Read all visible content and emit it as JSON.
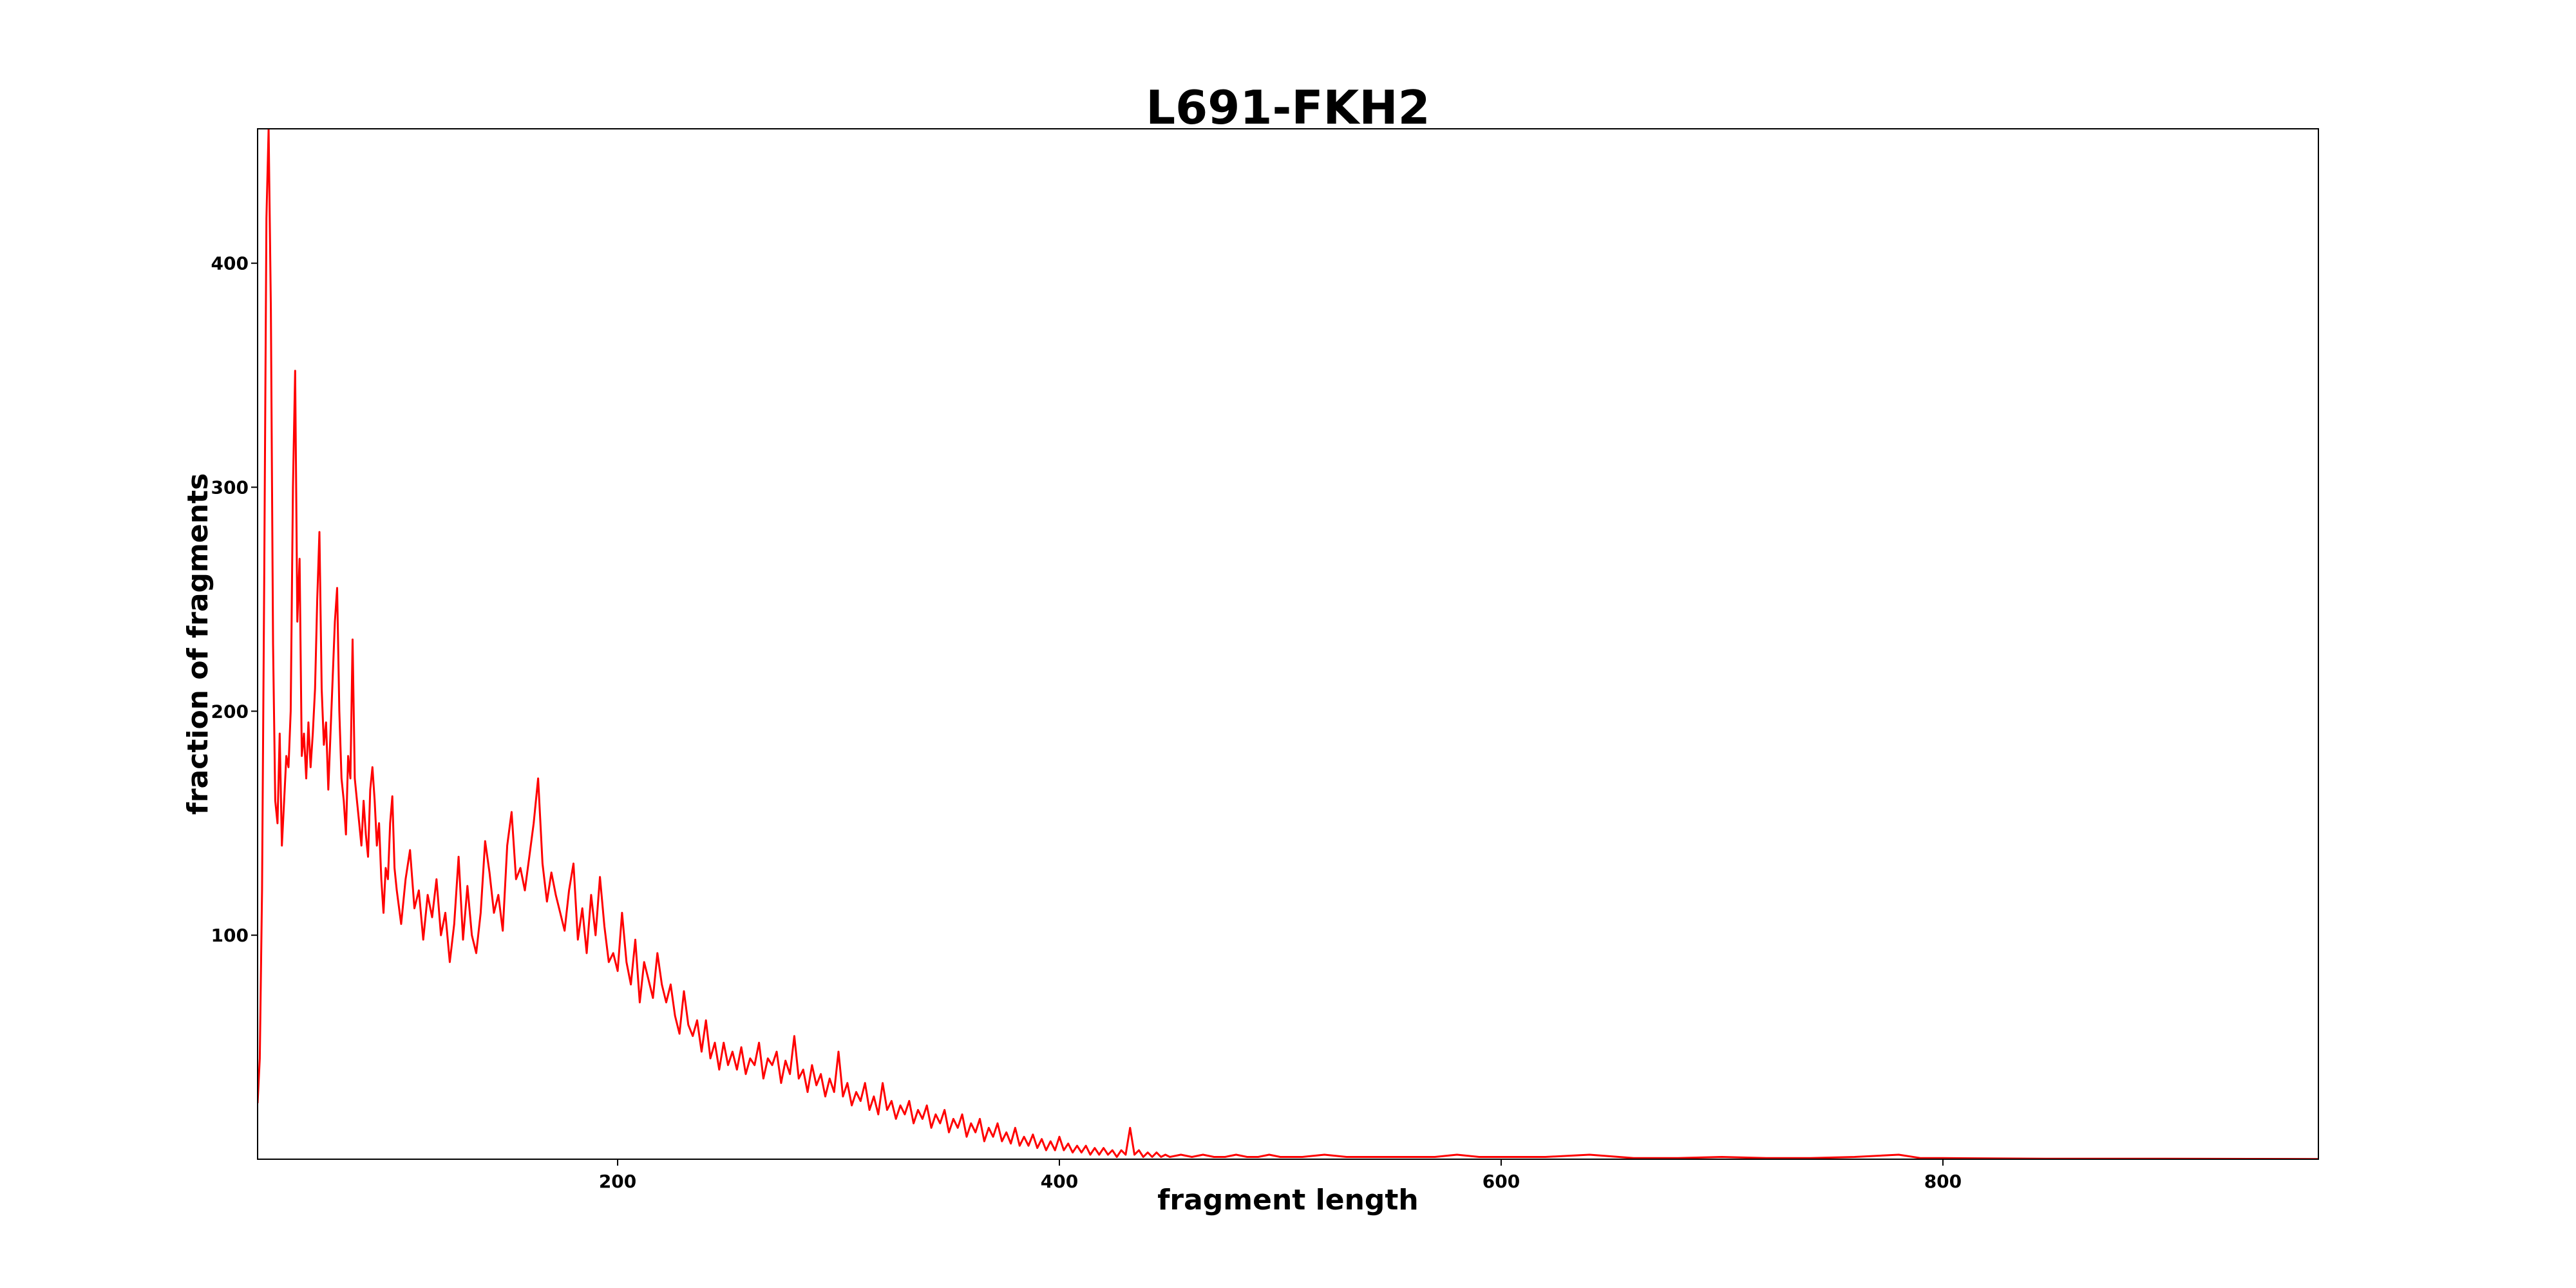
{
  "chart_data": {
    "type": "line",
    "title": "L691-FKH2",
    "xlabel": "fragment length",
    "ylabel": "fraction of fragments",
    "xlim": [
      37,
      970
    ],
    "ylim": [
      0,
      460
    ],
    "xticks": [
      200,
      400,
      600,
      800
    ],
    "yticks": [
      100,
      200,
      300,
      400
    ],
    "grid": false,
    "series": [
      {
        "color": "#ff0000",
        "points": [
          [
            37,
            25
          ],
          [
            38,
            45
          ],
          [
            39,
            120
          ],
          [
            40,
            260
          ],
          [
            41,
            420
          ],
          [
            42,
            460
          ],
          [
            43,
            380
          ],
          [
            44,
            230
          ],
          [
            45,
            160
          ],
          [
            46,
            150
          ],
          [
            47,
            190
          ],
          [
            48,
            140
          ],
          [
            49,
            160
          ],
          [
            50,
            180
          ],
          [
            51,
            175
          ],
          [
            52,
            200
          ],
          [
            53,
            300
          ],
          [
            54,
            352
          ],
          [
            55,
            240
          ],
          [
            56,
            268
          ],
          [
            57,
            180
          ],
          [
            58,
            190
          ],
          [
            59,
            170
          ],
          [
            60,
            195
          ],
          [
            61,
            175
          ],
          [
            62,
            190
          ],
          [
            63,
            210
          ],
          [
            64,
            250
          ],
          [
            65,
            280
          ],
          [
            66,
            210
          ],
          [
            67,
            185
          ],
          [
            68,
            195
          ],
          [
            69,
            165
          ],
          [
            70,
            190
          ],
          [
            71,
            215
          ],
          [
            72,
            240
          ],
          [
            73,
            255
          ],
          [
            74,
            200
          ],
          [
            75,
            170
          ],
          [
            76,
            160
          ],
          [
            77,
            145
          ],
          [
            78,
            180
          ],
          [
            79,
            170
          ],
          [
            80,
            232
          ],
          [
            81,
            170
          ],
          [
            82,
            160
          ],
          [
            83,
            150
          ],
          [
            84,
            140
          ],
          [
            85,
            160
          ],
          [
            86,
            145
          ],
          [
            87,
            135
          ],
          [
            88,
            165
          ],
          [
            89,
            175
          ],
          [
            90,
            160
          ],
          [
            91,
            140
          ],
          [
            92,
            150
          ],
          [
            93,
            125
          ],
          [
            94,
            110
          ],
          [
            95,
            130
          ],
          [
            96,
            125
          ],
          [
            97,
            150
          ],
          [
            98,
            162
          ],
          [
            99,
            130
          ],
          [
            100,
            120
          ],
          [
            102,
            105
          ],
          [
            104,
            125
          ],
          [
            106,
            138
          ],
          [
            108,
            112
          ],
          [
            110,
            120
          ],
          [
            112,
            98
          ],
          [
            114,
            118
          ],
          [
            116,
            108
          ],
          [
            118,
            125
          ],
          [
            120,
            100
          ],
          [
            122,
            110
          ],
          [
            124,
            88
          ],
          [
            126,
            105
          ],
          [
            128,
            135
          ],
          [
            130,
            98
          ],
          [
            132,
            122
          ],
          [
            134,
            100
          ],
          [
            136,
            92
          ],
          [
            138,
            110
          ],
          [
            140,
            142
          ],
          [
            142,
            128
          ],
          [
            144,
            110
          ],
          [
            146,
            118
          ],
          [
            148,
            102
          ],
          [
            150,
            140
          ],
          [
            152,
            155
          ],
          [
            154,
            125
          ],
          [
            156,
            130
          ],
          [
            158,
            120
          ],
          [
            160,
            135
          ],
          [
            162,
            150
          ],
          [
            164,
            170
          ],
          [
            166,
            132
          ],
          [
            168,
            115
          ],
          [
            170,
            128
          ],
          [
            172,
            118
          ],
          [
            174,
            110
          ],
          [
            176,
            102
          ],
          [
            178,
            120
          ],
          [
            180,
            132
          ],
          [
            182,
            98
          ],
          [
            184,
            112
          ],
          [
            186,
            92
          ],
          [
            188,
            118
          ],
          [
            190,
            100
          ],
          [
            192,
            126
          ],
          [
            194,
            104
          ],
          [
            196,
            88
          ],
          [
            198,
            92
          ],
          [
            200,
            84
          ],
          [
            202,
            110
          ],
          [
            204,
            88
          ],
          [
            206,
            78
          ],
          [
            208,
            98
          ],
          [
            210,
            70
          ],
          [
            212,
            88
          ],
          [
            214,
            80
          ],
          [
            216,
            72
          ],
          [
            218,
            92
          ],
          [
            220,
            78
          ],
          [
            222,
            70
          ],
          [
            224,
            78
          ],
          [
            226,
            64
          ],
          [
            228,
            56
          ],
          [
            230,
            75
          ],
          [
            232,
            60
          ],
          [
            234,
            55
          ],
          [
            236,
            62
          ],
          [
            238,
            48
          ],
          [
            240,
            62
          ],
          [
            242,
            45
          ],
          [
            244,
            52
          ],
          [
            246,
            40
          ],
          [
            248,
            52
          ],
          [
            250,
            42
          ],
          [
            252,
            48
          ],
          [
            254,
            40
          ],
          [
            256,
            50
          ],
          [
            258,
            38
          ],
          [
            260,
            45
          ],
          [
            262,
            42
          ],
          [
            264,
            52
          ],
          [
            266,
            36
          ],
          [
            268,
            45
          ],
          [
            270,
            42
          ],
          [
            272,
            48
          ],
          [
            274,
            34
          ],
          [
            276,
            44
          ],
          [
            278,
            38
          ],
          [
            280,
            55
          ],
          [
            282,
            36
          ],
          [
            284,
            40
          ],
          [
            286,
            30
          ],
          [
            288,
            42
          ],
          [
            290,
            33
          ],
          [
            292,
            38
          ],
          [
            294,
            28
          ],
          [
            296,
            36
          ],
          [
            298,
            30
          ],
          [
            300,
            48
          ],
          [
            302,
            28
          ],
          [
            304,
            34
          ],
          [
            306,
            24
          ],
          [
            308,
            30
          ],
          [
            310,
            26
          ],
          [
            312,
            34
          ],
          [
            314,
            22
          ],
          [
            316,
            28
          ],
          [
            318,
            20
          ],
          [
            320,
            34
          ],
          [
            322,
            22
          ],
          [
            324,
            26
          ],
          [
            326,
            18
          ],
          [
            328,
            24
          ],
          [
            330,
            20
          ],
          [
            332,
            26
          ],
          [
            334,
            16
          ],
          [
            336,
            22
          ],
          [
            338,
            18
          ],
          [
            340,
            24
          ],
          [
            342,
            14
          ],
          [
            344,
            20
          ],
          [
            346,
            16
          ],
          [
            348,
            22
          ],
          [
            350,
            12
          ],
          [
            352,
            18
          ],
          [
            354,
            14
          ],
          [
            356,
            20
          ],
          [
            358,
            10
          ],
          [
            360,
            16
          ],
          [
            362,
            12
          ],
          [
            364,
            18
          ],
          [
            366,
            8
          ],
          [
            368,
            14
          ],
          [
            370,
            10
          ],
          [
            372,
            16
          ],
          [
            374,
            8
          ],
          [
            376,
            12
          ],
          [
            378,
            7
          ],
          [
            380,
            14
          ],
          [
            382,
            6
          ],
          [
            384,
            10
          ],
          [
            386,
            6
          ],
          [
            388,
            11
          ],
          [
            390,
            5
          ],
          [
            392,
            9
          ],
          [
            394,
            4
          ],
          [
            396,
            8
          ],
          [
            398,
            4
          ],
          [
            400,
            10
          ],
          [
            402,
            4
          ],
          [
            404,
            7
          ],
          [
            406,
            3
          ],
          [
            408,
            6
          ],
          [
            410,
            3
          ],
          [
            412,
            6
          ],
          [
            414,
            2
          ],
          [
            416,
            5
          ],
          [
            418,
            2
          ],
          [
            420,
            5
          ],
          [
            422,
            2
          ],
          [
            424,
            4
          ],
          [
            426,
            1
          ],
          [
            428,
            4
          ],
          [
            430,
            2
          ],
          [
            432,
            14
          ],
          [
            434,
            2
          ],
          [
            436,
            4
          ],
          [
            438,
            1
          ],
          [
            440,
            3
          ],
          [
            442,
            1
          ],
          [
            444,
            3
          ],
          [
            446,
            1
          ],
          [
            448,
            2
          ],
          [
            450,
            1
          ],
          [
            455,
            2
          ],
          [
            460,
            1
          ],
          [
            465,
            2
          ],
          [
            470,
            1
          ],
          [
            475,
            1
          ],
          [
            480,
            2
          ],
          [
            485,
            1
          ],
          [
            490,
            1
          ],
          [
            495,
            2
          ],
          [
            500,
            1
          ],
          [
            510,
            1
          ],
          [
            520,
            2
          ],
          [
            530,
            1
          ],
          [
            540,
            1
          ],
          [
            550,
            1
          ],
          [
            560,
            1
          ],
          [
            570,
            1
          ],
          [
            580,
            2
          ],
          [
            590,
            1
          ],
          [
            600,
            1
          ],
          [
            620,
            1
          ],
          [
            640,
            2
          ],
          [
            660,
            0.5
          ],
          [
            680,
            0.5
          ],
          [
            700,
            1
          ],
          [
            720,
            0.5
          ],
          [
            740,
            0.5
          ],
          [
            760,
            1
          ],
          [
            780,
            2
          ],
          [
            790,
            0.5
          ],
          [
            800,
            0.5
          ],
          [
            850,
            0.2
          ],
          [
            900,
            0.2
          ],
          [
            970,
            0.1
          ]
        ]
      }
    ]
  }
}
